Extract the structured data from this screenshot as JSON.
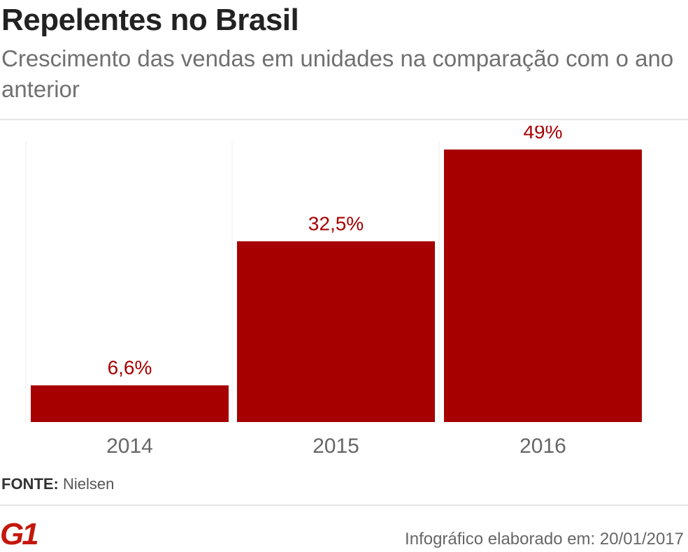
{
  "chart_data": {
    "type": "bar",
    "title": "Repelentes no Brasil",
    "subtitle": "Crescimento das vendas em unidades na comparação com o ano anterior",
    "categories": [
      "2014",
      "2015",
      "2016"
    ],
    "values": [
      6.6,
      32.5,
      49
    ],
    "value_labels": [
      "6,6%",
      "32,5%",
      "49%"
    ],
    "xlabel": "",
    "ylabel": "",
    "ylim": [
      0,
      50
    ],
    "grid": false,
    "bar_color": "#a60000",
    "label_color": "#a60000"
  },
  "source": {
    "label": "FONTE:",
    "value": "Nielsen"
  },
  "footer": {
    "credit": "Infográfico elaborado em: 20/01/2017"
  },
  "logo": {
    "text": "G1",
    "color": "#c4170c"
  }
}
